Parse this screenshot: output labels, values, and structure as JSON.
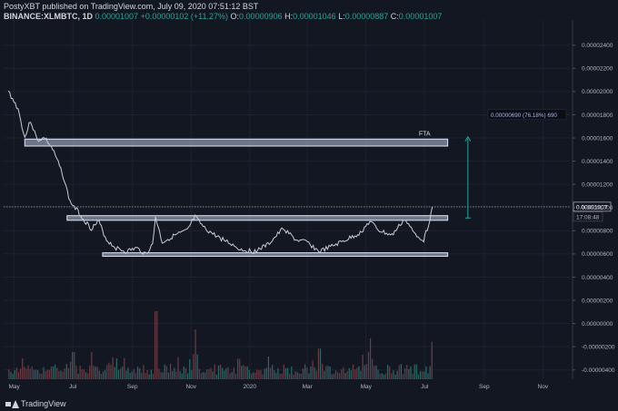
{
  "header": {
    "line1": "PostyXBT published on TradingView.com, July 09, 2020 07:51:12 BST",
    "symbol": "BINANCE:XLMBTC, 1D",
    "price": "0.00001007",
    "change": "+0.00000102 (+11.27%)",
    "o_label": "O:",
    "o_value": "0.00000906",
    "h_label": "H:",
    "h_value": "0.00001046",
    "l_label": "L:",
    "l_value": "0.00000887",
    "c_label": "C:",
    "c_value": "0.00001007"
  },
  "footer": {
    "brand": "TradingView"
  },
  "chart_data": {
    "type": "line",
    "y_axis_ticks": [
      "0.00002400",
      "0.00002200",
      "0.00002000",
      "0.00001800",
      "0.00001600",
      "0.00001400",
      "0.00001200",
      "0.00001000",
      "0.00000800",
      "0.00000600",
      "0.00000400",
      "0.00000200",
      "0.00000000",
      "-0.00000200",
      "-0.00000400"
    ],
    "y_axis_values": [
      2.4e-05,
      2.2e-05,
      2e-05,
      1.8e-05,
      1.6e-05,
      1.4e-05,
      1.2e-05,
      1e-05,
      8e-06,
      6e-06,
      4e-06,
      2e-06,
      0,
      -2e-06,
      -4e-06
    ],
    "x_axis_ticks": [
      "May",
      "Jul",
      "Sep",
      "Nov",
      "2020",
      "Mar",
      "May",
      "Jul",
      "Sep",
      "Nov"
    ],
    "ylim": [
      -4.8e-06,
      2.57e-05
    ],
    "last_price_label": "0.00001007",
    "countdown_label": "17:08:48",
    "last_price_value": 1.007e-05,
    "price_line": [
      [
        "2019-04-25",
        2e-05
      ],
      [
        "2019-05-05",
        1.85e-05
      ],
      [
        "2019-05-12",
        1.6e-05
      ],
      [
        "2019-05-18",
        1.75e-05
      ],
      [
        "2019-05-25",
        1.58e-05
      ],
      [
        "2019-06-02",
        1.6e-05
      ],
      [
        "2019-06-10",
        1.5e-05
      ],
      [
        "2019-06-20",
        1.3e-05
      ],
      [
        "2019-06-28",
        1.05e-05
      ],
      [
        "2019-07-05",
        9.8e-06
      ],
      [
        "2019-07-12",
        9e-06
      ],
      [
        "2019-07-20",
        8.2e-06
      ],
      [
        "2019-07-28",
        8.8e-06
      ],
      [
        "2019-08-05",
        7.2e-06
      ],
      [
        "2019-08-15",
        6.5e-06
      ],
      [
        "2019-08-25",
        6.2e-06
      ],
      [
        "2019-09-05",
        6.5e-06
      ],
      [
        "2019-09-15",
        6e-06
      ],
      [
        "2019-09-22",
        6.8e-06
      ],
      [
        "2019-09-25",
        9.2e-06
      ],
      [
        "2019-10-02",
        7e-06
      ],
      [
        "2019-10-15",
        7.6e-06
      ],
      [
        "2019-10-28",
        8e-06
      ],
      [
        "2019-11-05",
        9.2e-06
      ],
      [
        "2019-11-15",
        8.2e-06
      ],
      [
        "2019-11-28",
        7.5e-06
      ],
      [
        "2019-12-10",
        7e-06
      ],
      [
        "2019-12-22",
        6.4e-06
      ],
      [
        "2020-01-05",
        6.2e-06
      ],
      [
        "2020-01-20",
        6.8e-06
      ],
      [
        "2020-02-05",
        8.2e-06
      ],
      [
        "2020-02-18",
        7.2e-06
      ],
      [
        "2020-03-01",
        7e-06
      ],
      [
        "2020-03-13",
        6.2e-06
      ],
      [
        "2020-03-25",
        6.6e-06
      ],
      [
        "2020-04-10",
        7.2e-06
      ],
      [
        "2020-04-25",
        7.8e-06
      ],
      [
        "2020-05-05",
        8.8e-06
      ],
      [
        "2020-05-15",
        8e-06
      ],
      [
        "2020-05-28",
        7.6e-06
      ],
      [
        "2020-06-10",
        9e-06
      ],
      [
        "2020-06-20",
        7.8e-06
      ],
      [
        "2020-06-30",
        7.2e-06
      ],
      [
        "2020-07-05",
        8.5e-06
      ],
      [
        "2020-07-09",
        1.007e-05
      ]
    ],
    "volume_peaks": [
      [
        "2019-07-01",
        0.4
      ],
      [
        "2019-07-20",
        0.3
      ],
      [
        "2019-09-25",
        1.0
      ],
      [
        "2019-11-05",
        0.55
      ],
      [
        "2019-12-20",
        0.3
      ],
      [
        "2020-01-20",
        0.25
      ],
      [
        "2020-03-13",
        0.45
      ],
      [
        "2020-05-05",
        0.45
      ],
      [
        "2020-07-09",
        0.55
      ]
    ],
    "annotations": {
      "fta_label": "FTA",
      "measure_label": "0.00000690 (76.18%) 690",
      "fta_zone": {
        "top": 1.59e-05,
        "bottom": 1.53e-05,
        "from": "2019-05-12",
        "to": "2020-07-25"
      },
      "upper_zone": {
        "top": 9.3e-06,
        "bottom": 8.9e-06,
        "from": "2019-06-25",
        "to": "2020-07-25"
      },
      "lower_zone": {
        "top": 6.1e-06,
        "bottom": 5.8e-06,
        "from": "2019-08-01",
        "to": "2020-07-25"
      },
      "measure": {
        "from_price": 9.1e-06,
        "to_price": 1.61e-05,
        "date": "2020-08-15"
      }
    },
    "grid": true
  }
}
